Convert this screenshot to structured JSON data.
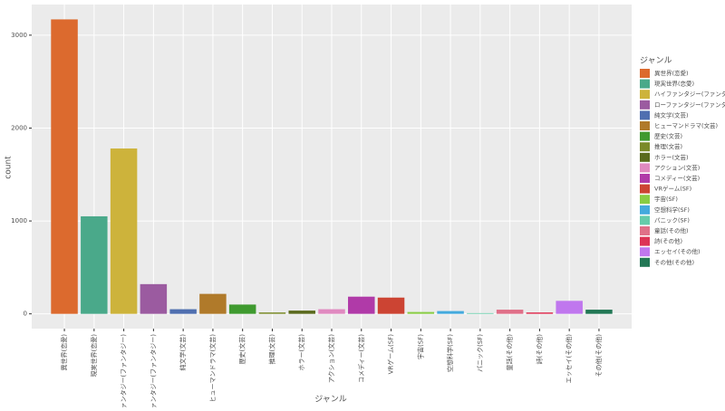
{
  "chart_data": {
    "type": "bar",
    "x_label": "ジャンル",
    "y_label": "count",
    "legend_title": "ジャンル",
    "categories": [
      "異世界(恋愛)",
      "現実世界(恋愛)",
      "ハイファンタジー(ファンタジー)",
      "ローファンタジー(ファンタジー)",
      "純文学(文芸)",
      "ヒューマンドラマ(文芸)",
      "歴史(文芸)",
      "推理(文芸)",
      "ホラー(文芸)",
      "アクション(文芸)",
      "コメディー(文芸)",
      "VRゲーム(SF)",
      "宇宙(SF)",
      "空想科学(SF)",
      "パニック(SF)",
      "童話(その他)",
      "詩(その他)",
      "エッセイ(その他)",
      "その他(その他)"
    ],
    "values": [
      3170,
      1050,
      1780,
      320,
      50,
      215,
      100,
      15,
      35,
      50,
      185,
      175,
      20,
      30,
      8,
      45,
      15,
      140,
      45
    ],
    "colors": [
      "#dc6a2e",
      "#4aa98a",
      "#cdb33b",
      "#9b5ba0",
      "#4f6fb0",
      "#b07a2a",
      "#3f9a2f",
      "#7a8a2a",
      "#5a6a1e",
      "#e08ac0",
      "#b03aa8",
      "#cc4433",
      "#88cc44",
      "#44aadd",
      "#66ccaa",
      "#e07088",
      "#dd3355",
      "#c077ee",
      "#227755"
    ],
    "ylim": [
      -159,
      3330
    ],
    "yticks": [
      0,
      1000,
      2000,
      3000
    ],
    "grid": true,
    "legend": "right"
  }
}
